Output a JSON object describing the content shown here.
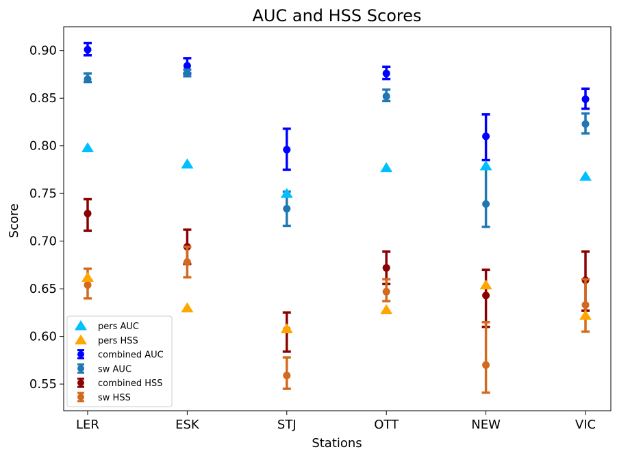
{
  "chart_data": {
    "type": "scatter",
    "title": "AUC and HSS Scores",
    "xlabel": "Stations",
    "ylabel": "Score",
    "categories": [
      "LER",
      "ESK",
      "STJ",
      "OTT",
      "NEW",
      "VIC"
    ],
    "ylim": [
      0.522,
      0.925
    ],
    "yticks": [
      "0.55",
      "0.60",
      "0.65",
      "0.70",
      "0.75",
      "0.80",
      "0.85",
      "0.90"
    ],
    "grid": false,
    "legend_position": "lower-left",
    "series": [
      {
        "name": "pers AUC",
        "marker": "triangle",
        "color": "#00bfff",
        "values": [
          0.798,
          0.781,
          0.75,
          0.777,
          0.779,
          0.768
        ]
      },
      {
        "name": "pers HSS",
        "marker": "triangle",
        "color": "#ffa500",
        "values": [
          0.662,
          0.63,
          0.608,
          0.628,
          0.654,
          0.622
        ]
      },
      {
        "name": "combined AUC",
        "marker": "circle-errorbar",
        "color": "#0000ff",
        "values": [
          0.901,
          0.884,
          0.796,
          0.876,
          0.81,
          0.849
        ],
        "err_low": [
          0.895,
          0.876,
          0.775,
          0.87,
          0.785,
          0.839
        ],
        "err_high": [
          0.908,
          0.892,
          0.818,
          0.883,
          0.833,
          0.86
        ]
      },
      {
        "name": "sw AUC",
        "marker": "circle-errorbar",
        "color": "#1f77b4",
        "values": [
          0.87,
          0.876,
          0.734,
          0.852,
          0.739,
          0.823
        ],
        "err_low": [
          0.867,
          0.873,
          0.716,
          0.847,
          0.715,
          0.813
        ],
        "err_high": [
          0.876,
          0.88,
          0.752,
          0.859,
          0.776,
          0.834
        ]
      },
      {
        "name": "combined HSS",
        "marker": "circle-errorbar",
        "color": "#8b0000",
        "values": [
          0.729,
          0.694,
          0.607,
          0.672,
          0.643,
          0.659
        ],
        "err_low": [
          0.711,
          0.676,
          0.584,
          0.655,
          0.61,
          0.627
        ],
        "err_high": [
          0.744,
          0.712,
          0.625,
          0.689,
          0.67,
          0.689
        ]
      },
      {
        "name": "sw HSS",
        "marker": "circle-errorbar",
        "color": "#d2691e",
        "values": [
          0.654,
          0.678,
          0.559,
          0.647,
          0.57,
          0.633
        ],
        "err_low": [
          0.64,
          0.662,
          0.545,
          0.637,
          0.541,
          0.605
        ],
        "err_high": [
          0.671,
          0.694,
          0.578,
          0.66,
          0.615,
          0.66
        ]
      }
    ]
  }
}
